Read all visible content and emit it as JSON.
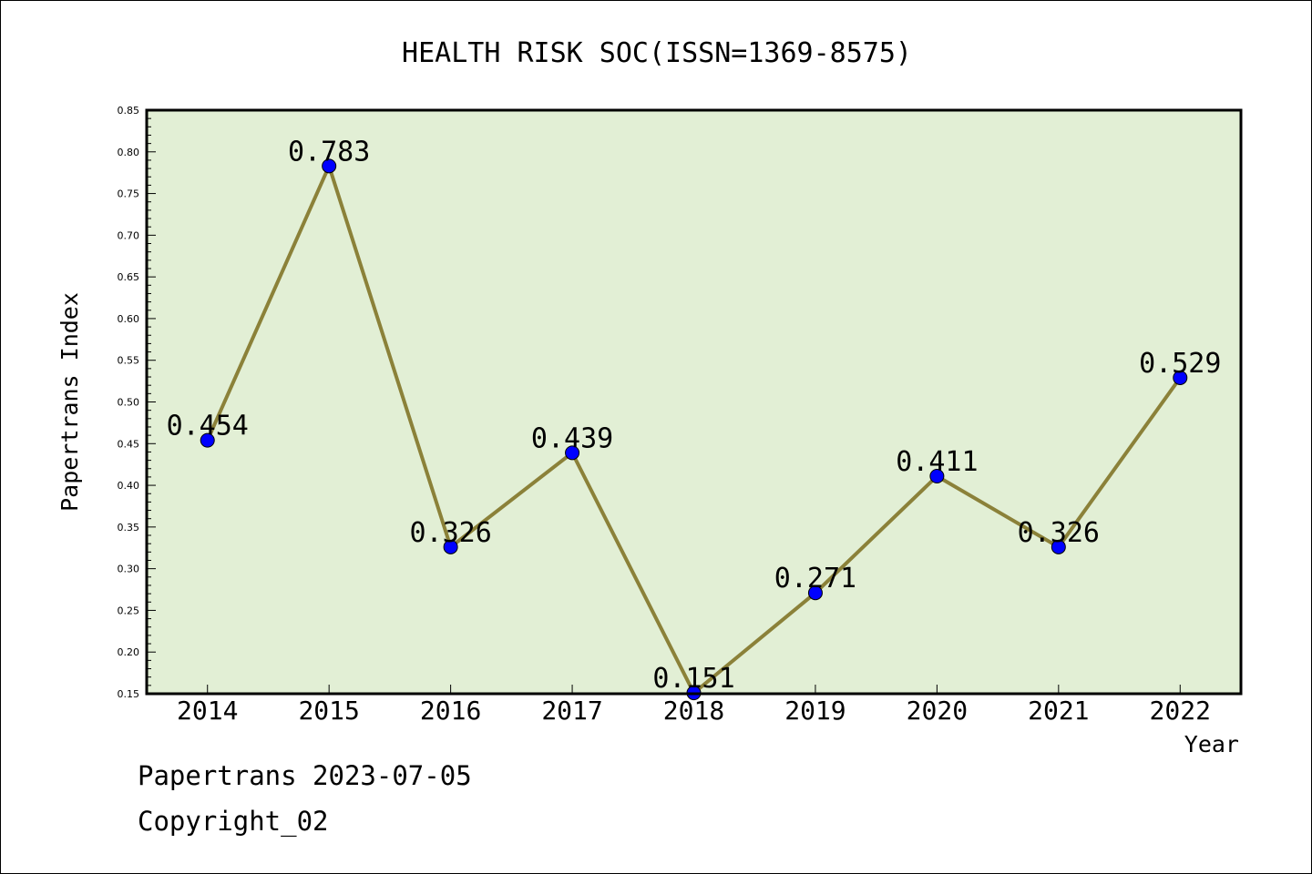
{
  "chart_data": {
    "type": "line",
    "title": "HEALTH RISK SOC(ISSN=1369-8575)",
    "xlabel": "Year",
    "ylabel": "Papertrans Index",
    "categories": [
      "2014",
      "2015",
      "2016",
      "2017",
      "2018",
      "2019",
      "2020",
      "2021",
      "2022"
    ],
    "series": [
      {
        "values": [
          0.454,
          0.783,
          0.326,
          0.439,
          0.151,
          0.271,
          0.411,
          0.326,
          0.529
        ],
        "data_labels": [
          "0.454",
          "0.783",
          "0.326",
          "0.439",
          "0.151",
          "0.271",
          "0.411",
          "0.326",
          "0.529"
        ]
      }
    ],
    "ylim": [
      0.15,
      0.85
    ],
    "y_ticks": [
      "0.15",
      "0.20",
      "0.25",
      "0.30",
      "0.35",
      "0.40",
      "0.45",
      "0.50",
      "0.55",
      "0.60",
      "0.65",
      "0.70",
      "0.75",
      "0.80",
      "0.85"
    ],
    "grid": false,
    "legend": "none",
    "colors": {
      "plot_background": "#e2efd5",
      "line": "#8b8139",
      "marker": "#0000ff"
    }
  },
  "footer": {
    "date_text": "Papertrans 2023-07-05",
    "copyright_text": "Copyright_02"
  }
}
